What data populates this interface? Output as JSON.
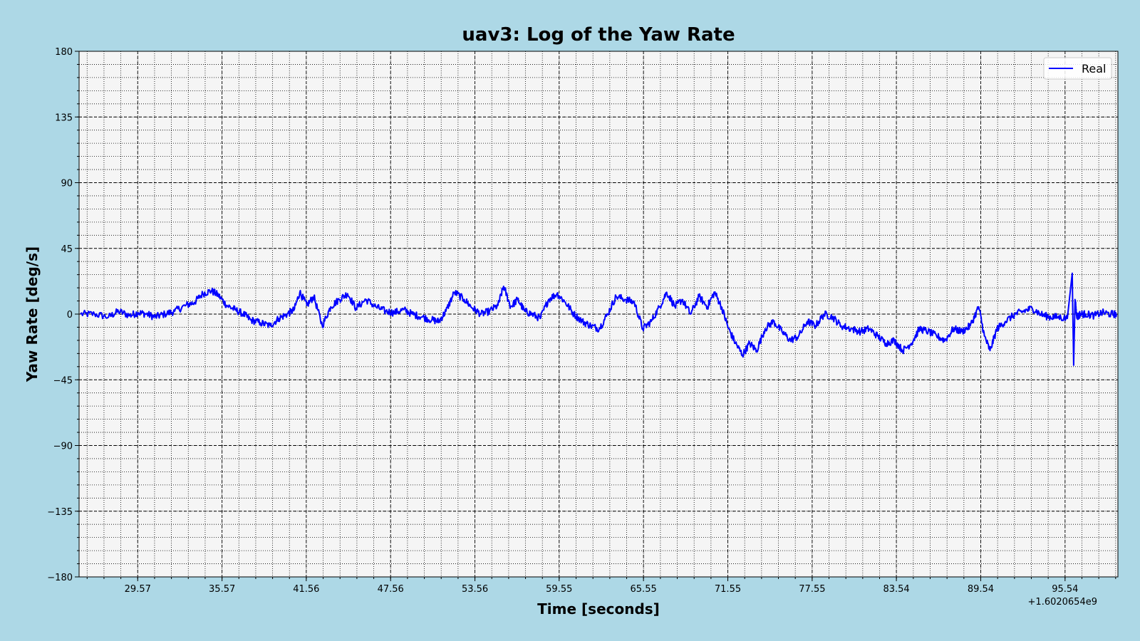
{
  "chart_data": {
    "type": "line",
    "title": "uav3: Log of the Yaw Rate",
    "xlabel": "Time [seconds]",
    "ylabel": "Yaw Rate [deg/s]",
    "x_offset_label": "+1.6020654e9",
    "xlim": [
      25.4,
      99.3
    ],
    "ylim": [
      -180,
      180
    ],
    "x_ticks": [
      29.57,
      35.57,
      41.56,
      47.56,
      53.56,
      59.55,
      65.55,
      71.55,
      77.55,
      83.54,
      89.54,
      95.54
    ],
    "x_tick_labels": [
      "29.57",
      "35.57",
      "41.56",
      "47.56",
      "53.56",
      "59.55",
      "65.55",
      "71.55",
      "77.55",
      "83.54",
      "89.54",
      "95.54"
    ],
    "y_ticks": [
      -180,
      -135,
      -90,
      -45,
      0,
      45,
      90,
      135,
      180
    ],
    "y_tick_labels": [
      "−180",
      "−135",
      "−90",
      "−45",
      "0",
      "45",
      "90",
      "135",
      "180"
    ],
    "grid": true,
    "legend_position": "top-right",
    "series": [
      {
        "name": "Real",
        "color": "#0000ff",
        "x": [
          25.5,
          26.5,
          27.5,
          28.2,
          29.0,
          29.6,
          30.2,
          30.8,
          31.5,
          32.2,
          33.0,
          33.6,
          34.2,
          34.8,
          35.3,
          35.9,
          36.5,
          37.1,
          37.6,
          38.3,
          39.0,
          39.6,
          40.2,
          40.7,
          41.1,
          41.6,
          42.1,
          42.7,
          43.3,
          43.9,
          44.5,
          45.1,
          45.8,
          46.5,
          47.2,
          47.8,
          48.5,
          49.1,
          49.8,
          50.5,
          51.0,
          51.5,
          52.1,
          52.8,
          53.4,
          54.0,
          54.6,
          55.2,
          55.6,
          56.1,
          56.6,
          57.1,
          57.6,
          58.2,
          58.8,
          59.4,
          60.0,
          60.6,
          61.2,
          61.8,
          62.4,
          63.0,
          63.6,
          64.3,
          64.9,
          65.5,
          66.1,
          66.7,
          67.2,
          67.8,
          68.3,
          68.9,
          69.5,
          70.1,
          70.6,
          71.1,
          71.6,
          72.1,
          72.6,
          73.1,
          73.6,
          74.2,
          74.8,
          75.4,
          76.0,
          76.6,
          77.2,
          77.8,
          78.4,
          79.0,
          79.6,
          80.3,
          81.0,
          81.6,
          82.2,
          82.8,
          83.4,
          84.0,
          84.6,
          85.2,
          85.8,
          86.4,
          87.0,
          87.6,
          88.2,
          88.8,
          89.4,
          89.8,
          90.2,
          90.7,
          91.3,
          92.0,
          92.6,
          93.2,
          93.8,
          94.4,
          95.0,
          95.7,
          96.05,
          96.15,
          96.25,
          96.35,
          96.45,
          96.6,
          97.0,
          97.6,
          98.2,
          98.8,
          99.2
        ],
        "y": [
          0,
          0,
          -2,
          2,
          -1,
          1,
          0,
          -2,
          0,
          2,
          6,
          8,
          14,
          16,
          13,
          6,
          3,
          0,
          -4,
          -6,
          -8,
          -3,
          0,
          3,
          15,
          6,
          12,
          -8,
          5,
          10,
          14,
          4,
          10,
          5,
          2,
          1,
          3,
          0,
          -2,
          -4,
          -5,
          2,
          15,
          10,
          4,
          0,
          2,
          6,
          19,
          5,
          10,
          2,
          0,
          -3,
          10,
          14,
          8,
          0,
          -5,
          -8,
          -10,
          0,
          12,
          10,
          8,
          -10,
          -5,
          5,
          15,
          5,
          10,
          0,
          12,
          5,
          15,
          5,
          -10,
          -20,
          -28,
          -20,
          -25,
          -10,
          -5,
          -12,
          -18,
          -15,
          -5,
          -8,
          0,
          -2,
          -8,
          -10,
          -12,
          -10,
          -15,
          -20,
          -18,
          -25,
          -20,
          -10,
          -12,
          -15,
          -18,
          -10,
          -12,
          -8,
          5,
          -15,
          -25,
          -10,
          -5,
          0,
          2,
          4,
          0,
          -2,
          -2,
          -3,
          28,
          -35,
          10,
          0,
          -2,
          0,
          0,
          -1,
          1,
          0,
          0
        ]
      }
    ]
  }
}
